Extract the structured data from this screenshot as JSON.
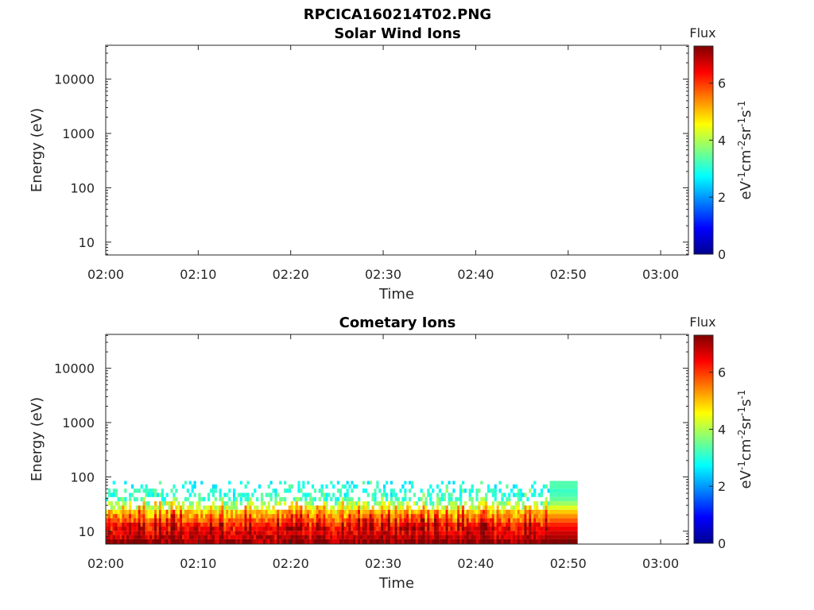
{
  "figure": {
    "title": "RPCICA160214T02.PNG"
  },
  "colormap": "jet",
  "colors": {
    "axis": "#262626",
    "title": "#000000",
    "background": "#ffffff"
  },
  "chart_data": [
    {
      "type": "heatmap",
      "title": "Solar Wind Ions",
      "xlabel": "Time",
      "ylabel": "Energy (eV)",
      "x_ticks": [
        "02:00",
        "02:10",
        "02:20",
        "02:30",
        "02:40",
        "02:50",
        "03:00"
      ],
      "xlim": [
        "02:00",
        "03:03"
      ],
      "y_scale": "log",
      "y_ticks": [
        "10",
        "100",
        "1000",
        "10000"
      ],
      "ylim": [
        5.8,
        42000
      ],
      "colorbar": {
        "title": "Flux",
        "label": "eV-1cm-2sr-1s-1",
        "ticks": [
          "0",
          "2",
          "4",
          "6"
        ],
        "range": [
          0,
          7.3
        ]
      },
      "data": "no data shown (empty panel)"
    },
    {
      "type": "heatmap",
      "title": "Cometary Ions",
      "xlabel": "Time",
      "ylabel": "Energy (eV)",
      "x_ticks": [
        "02:00",
        "02:10",
        "02:20",
        "02:30",
        "02:40",
        "02:50",
        "03:00"
      ],
      "xlim": [
        "02:00",
        "03:03"
      ],
      "y_scale": "log",
      "y_ticks": [
        "10",
        "100",
        "1000",
        "10000"
      ],
      "ylim": [
        5.8,
        42000
      ],
      "colorbar": {
        "title": "Flux",
        "label": "eV-1cm-2sr-1s-1",
        "ticks": [
          "0",
          "2",
          "4",
          "6"
        ],
        "range": [
          0,
          7.3
        ]
      },
      "data_time_range": [
        "02:00",
        "02:51"
      ],
      "constant_block_time_range": [
        "02:48",
        "02:51"
      ],
      "energy_bins_eV": [
        6.5,
        7.8,
        9.3,
        11.1,
        13.3,
        15.9,
        19,
        22.7,
        27.2,
        32.5,
        38.9,
        46.5,
        55.6,
        66.5,
        79.5
      ],
      "flux_profile_vs_energy": [
        6.9,
        6.6,
        6.4,
        6.1,
        5.8,
        5.4,
        5.0,
        4.6,
        4.0,
        3.5,
        3.1,
        2.9,
        2.8,
        2.7,
        2.6
      ],
      "flux_range_shown": [
        2.5,
        7.3
      ]
    }
  ]
}
